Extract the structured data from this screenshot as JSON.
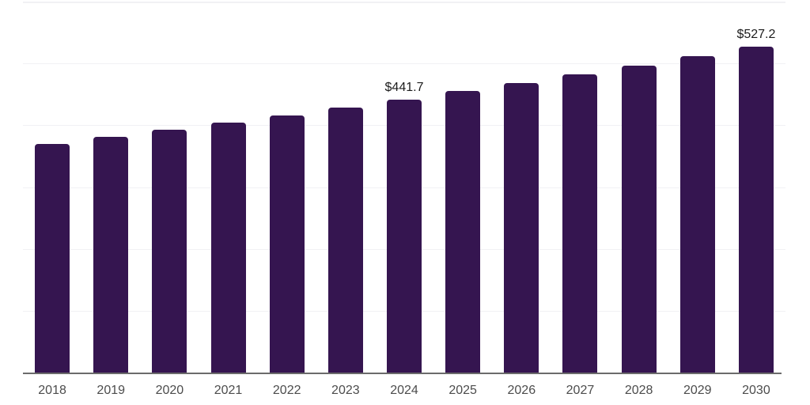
{
  "chart_data": {
    "type": "bar",
    "title": "",
    "xlabel": "",
    "ylabel": "",
    "categories": [
      "2018",
      "2019",
      "2020",
      "2021",
      "2022",
      "2023",
      "2024",
      "2025",
      "2026",
      "2027",
      "2028",
      "2029",
      "2030"
    ],
    "values": [
      370.1,
      381.2,
      392.6,
      404.3,
      416.4,
      428.9,
      441.7,
      454.9,
      468.5,
      482.5,
      496.9,
      511.8,
      527.2
    ],
    "data_labels": [
      "",
      "",
      "",
      "",
      "",
      "",
      "$441.7",
      "",
      "",
      "",
      "",
      "",
      "$527.2"
    ],
    "ylim": [
      0,
      600
    ],
    "gridline_values": [
      100,
      200,
      300,
      400,
      500,
      600
    ],
    "grid": "horizontal-only",
    "legend": "none",
    "axis_tick_labels_y": "none"
  },
  "colors": {
    "bar": "#351550",
    "gridline": "#f1f1f4",
    "axis_line": "#6b6b6b",
    "x_label": "#4c4c4c",
    "value_label": "#1c1c1c",
    "background": "#ffffff"
  }
}
